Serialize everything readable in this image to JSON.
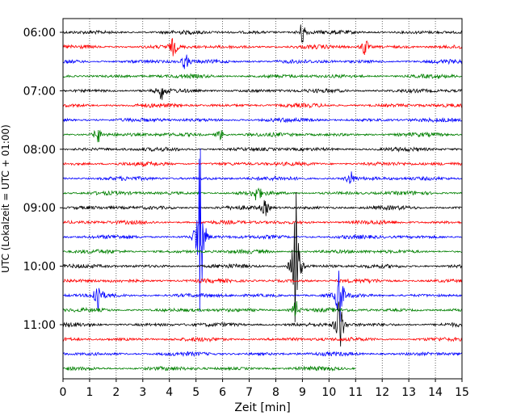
{
  "chart_data": {
    "type": "line",
    "title": "",
    "xlabel": "Zeit  [min]",
    "ylabel": "UTC (Lokalzeit = UTC + 01:00)",
    "xlim": [
      0,
      15
    ],
    "x_ticks": [
      0,
      1,
      2,
      3,
      4,
      5,
      6,
      7,
      8,
      9,
      10,
      11,
      12,
      13,
      14,
      15
    ],
    "y_tick_labels": [
      "06:00",
      "07:00",
      "08:00",
      "09:00",
      "10:00",
      "11:00"
    ],
    "grid": "vertical dotted",
    "trace_minutes": 15,
    "last_trace_end_min": 11.0,
    "colors": [
      "#000000",
      "#ff0000",
      "#0000ff",
      "#008000"
    ],
    "traces": [
      {
        "start": "06:00",
        "color": "#000000"
      },
      {
        "start": "06:15",
        "color": "#ff0000"
      },
      {
        "start": "06:30",
        "color": "#0000ff"
      },
      {
        "start": "06:45",
        "color": "#008000"
      },
      {
        "start": "07:00",
        "color": "#000000"
      },
      {
        "start": "07:15",
        "color": "#ff0000"
      },
      {
        "start": "07:30",
        "color": "#0000ff"
      },
      {
        "start": "07:45",
        "color": "#008000"
      },
      {
        "start": "08:00",
        "color": "#000000"
      },
      {
        "start": "08:15",
        "color": "#ff0000"
      },
      {
        "start": "08:30",
        "color": "#0000ff"
      },
      {
        "start": "08:45",
        "color": "#008000"
      },
      {
        "start": "09:00",
        "color": "#000000"
      },
      {
        "start": "09:15",
        "color": "#ff0000"
      },
      {
        "start": "09:30",
        "color": "#0000ff"
      },
      {
        "start": "09:45",
        "color": "#008000"
      },
      {
        "start": "10:00",
        "color": "#000000"
      },
      {
        "start": "10:15",
        "color": "#ff0000"
      },
      {
        "start": "10:30",
        "color": "#0000ff"
      },
      {
        "start": "10:45",
        "color": "#008000"
      },
      {
        "start": "11:00",
        "color": "#000000"
      },
      {
        "start": "11:15",
        "color": "#ff0000"
      },
      {
        "start": "11:30",
        "color": "#0000ff"
      },
      {
        "start": "11:45",
        "color": "#008000"
      }
    ],
    "events": [
      {
        "trace": 0,
        "t": 9.0,
        "amp": 1.2
      },
      {
        "trace": 1,
        "t": 4.15,
        "amp": 0.9
      },
      {
        "trace": 1,
        "t": 11.35,
        "amp": 1.0
      },
      {
        "trace": 2,
        "t": 4.6,
        "amp": 0.8
      },
      {
        "trace": 4,
        "t": 3.7,
        "amp": 0.8
      },
      {
        "trace": 7,
        "t": 1.3,
        "amp": 0.9
      },
      {
        "trace": 7,
        "t": 5.9,
        "amp": 0.6
      },
      {
        "trace": 10,
        "t": 10.8,
        "amp": 0.8
      },
      {
        "trace": 11,
        "t": 7.3,
        "amp": 0.9
      },
      {
        "trace": 12,
        "t": 7.6,
        "amp": 0.8
      },
      {
        "trace": 14,
        "t": 5.15,
        "amp": 8.5
      },
      {
        "trace": 16,
        "t": 8.75,
        "amp": 7.5
      },
      {
        "trace": 18,
        "t": 1.3,
        "amp": 2.0
      },
      {
        "trace": 18,
        "t": 10.4,
        "amp": 3.0
      },
      {
        "trace": 19,
        "t": 8.75,
        "amp": 1.0
      },
      {
        "trace": 20,
        "t": 10.4,
        "amp": 3.2
      }
    ]
  }
}
